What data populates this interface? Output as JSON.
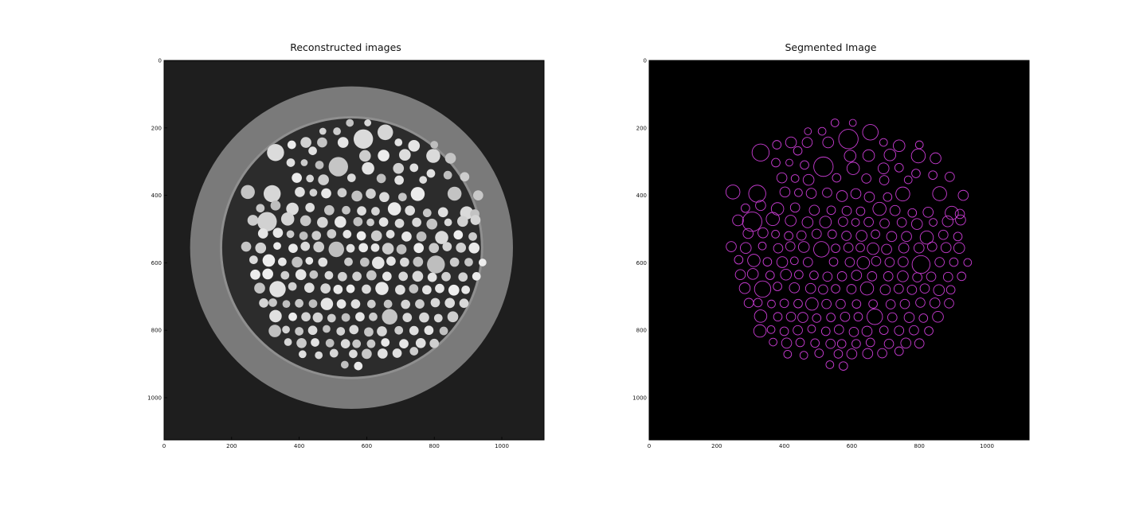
{
  "chart_data": [
    {
      "type": "image",
      "title": "Reconstructed images",
      "xticks": [
        0,
        200,
        400,
        600,
        800,
        1000
      ],
      "yticks": [
        0,
        200,
        400,
        600,
        800,
        1000
      ],
      "xticklabels": [
        "0",
        "200",
        "400",
        "600",
        "800",
        "1000"
      ],
      "yticklabels": [
        "0",
        "200",
        "400",
        "600",
        "800",
        "1000"
      ],
      "xlim": [
        0,
        1125
      ],
      "ylim": [
        1125,
        0
      ],
      "colormap": "gray",
      "background_color": "#1e1e1e",
      "ring_color": "#7a7a7a",
      "interior_color": "#2c2c2c"
    },
    {
      "type": "image",
      "title": "Segmented Image",
      "xticks": [
        0,
        200,
        400,
        600,
        800,
        1000
      ],
      "yticks": [
        0,
        200,
        400,
        600,
        800,
        1000
      ],
      "xticklabels": [
        "0",
        "200",
        "400",
        "600",
        "800",
        "1000"
      ],
      "yticklabels": [
        "0",
        "200",
        "400",
        "600",
        "800",
        "1000"
      ],
      "xlim": [
        0,
        1125
      ],
      "ylim": [
        1125,
        0
      ],
      "background_color": "#000000",
      "contour_color": "#c83cd2"
    }
  ],
  "particles": [
    [
      550,
      185,
      10
    ],
    [
      603,
      185,
      9
    ],
    [
      655,
      213,
      20
    ],
    [
      470,
      210,
      9
    ],
    [
      512,
      210,
      10
    ],
    [
      590,
      233,
      25
    ],
    [
      420,
      243,
      14
    ],
    [
      468,
      243,
      13
    ],
    [
      530,
      243,
      14
    ],
    [
      694,
      243,
      10
    ],
    [
      740,
      253,
      15
    ],
    [
      800,
      250,
      10
    ],
    [
      378,
      250,
      11
    ],
    [
      330,
      273,
      22
    ],
    [
      440,
      268,
      11
    ],
    [
      595,
      283,
      15
    ],
    [
      650,
      282,
      15
    ],
    [
      713,
      280,
      15
    ],
    [
      797,
      283,
      18
    ],
    [
      848,
      290,
      14
    ],
    [
      375,
      303,
      11
    ],
    [
      415,
      303,
      9
    ],
    [
      516,
      315,
      25
    ],
    [
      460,
      310,
      11
    ],
    [
      604,
      320,
      16
    ],
    [
      694,
      320,
      14
    ],
    [
      740,
      318,
      11
    ],
    [
      790,
      335,
      11
    ],
    [
      840,
      340,
      11
    ],
    [
      890,
      345,
      12
    ],
    [
      393,
      348,
      13
    ],
    [
      432,
      350,
      10
    ],
    [
      472,
      354,
      14
    ],
    [
      555,
      348,
      11
    ],
    [
      643,
      350,
      12
    ],
    [
      696,
      355,
      12
    ],
    [
      767,
      354,
      10
    ],
    [
      248,
      390,
      18
    ],
    [
      320,
      395,
      22
    ],
    [
      402,
      390,
      13
    ],
    [
      442,
      392,
      10
    ],
    [
      480,
      394,
      13
    ],
    [
      527,
      392,
      12
    ],
    [
      571,
      402,
      14
    ],
    [
      612,
      395,
      13
    ],
    [
      652,
      405,
      13
    ],
    [
      706,
      405,
      11
    ],
    [
      751,
      396,
      18
    ],
    [
      860,
      395,
      18
    ],
    [
      930,
      400,
      13
    ],
    [
      285,
      438,
      11
    ],
    [
      330,
      430,
      13
    ],
    [
      380,
      440,
      16
    ],
    [
      432,
      436,
      12
    ],
    [
      489,
      444,
      13
    ],
    [
      539,
      444,
      11
    ],
    [
      585,
      446,
      12
    ],
    [
      626,
      447,
      11
    ],
    [
      682,
      440,
      17
    ],
    [
      728,
      445,
      13
    ],
    [
      779,
      452,
      11
    ],
    [
      826,
      450,
      13
    ],
    [
      896,
      452,
      17
    ],
    [
      920,
      455,
      12
    ],
    [
      263,
      474,
      14
    ],
    [
      305,
      478,
      25
    ],
    [
      366,
      470,
      17
    ],
    [
      419,
      475,
      14
    ],
    [
      469,
      480,
      14
    ],
    [
      522,
      479,
      15
    ],
    [
      574,
      478,
      12
    ],
    [
      611,
      480,
      10
    ],
    [
      650,
      479,
      12
    ],
    [
      697,
      483,
      12
    ],
    [
      748,
      480,
      12
    ],
    [
      793,
      485,
      14
    ],
    [
      841,
      480,
      10
    ],
    [
      884,
      477,
      14
    ],
    [
      922,
      473,
      13
    ],
    [
      293,
      513,
      13
    ],
    [
      337,
      511,
      13
    ],
    [
      374,
      515,
      10
    ],
    [
      413,
      520,
      11
    ],
    [
      451,
      519,
      12
    ],
    [
      496,
      514,
      12
    ],
    [
      542,
      515,
      11
    ],
    [
      584,
      520,
      12
    ],
    [
      629,
      520,
      14
    ],
    [
      670,
      515,
      11
    ],
    [
      718,
      522,
      13
    ],
    [
      762,
      522,
      13
    ],
    [
      822,
      525,
      17
    ],
    [
      871,
      517,
      12
    ],
    [
      914,
      522,
      11
    ],
    [
      243,
      552,
      13
    ],
    [
      286,
      556,
      14
    ],
    [
      335,
      550,
      10
    ],
    [
      382,
      557,
      12
    ],
    [
      418,
      551,
      12
    ],
    [
      458,
      553,
      14
    ],
    [
      510,
      560,
      20
    ],
    [
      552,
      557,
      11
    ],
    [
      590,
      555,
      12
    ],
    [
      625,
      555,
      11
    ],
    [
      663,
      558,
      15
    ],
    [
      703,
      560,
      13
    ],
    [
      754,
      556,
      13
    ],
    [
      799,
      556,
      13
    ],
    [
      838,
      552,
      12
    ],
    [
      879,
      555,
      13
    ],
    [
      918,
      556,
      14
    ],
    [
      265,
      591,
      11
    ],
    [
      310,
      593,
      16
    ],
    [
      350,
      597,
      11
    ],
    [
      394,
      598,
      14
    ],
    [
      430,
      594,
      10
    ],
    [
      470,
      598,
      12
    ],
    [
      546,
      597,
      11
    ],
    [
      594,
      598,
      12
    ],
    [
      634,
      600,
      16
    ],
    [
      672,
      595,
      12
    ],
    [
      712,
      598,
      12
    ],
    [
      752,
      597,
      13
    ],
    [
      805,
      605,
      23
    ],
    [
      860,
      598,
      12
    ],
    [
      902,
      598,
      11
    ],
    [
      943,
      599,
      10
    ],
    [
      270,
      635,
      13
    ],
    [
      307,
      633,
      14
    ],
    [
      358,
      637,
      11
    ],
    [
      405,
      635,
      14
    ],
    [
      443,
      635,
      11
    ],
    [
      488,
      637,
      11
    ],
    [
      528,
      641,
      12
    ],
    [
      571,
      640,
      12
    ],
    [
      614,
      637,
      13
    ],
    [
      660,
      640,
      12
    ],
    [
      708,
      640,
      12
    ],
    [
      751,
      640,
      14
    ],
    [
      794,
      643,
      12
    ],
    [
      835,
      641,
      12
    ],
    [
      885,
      642,
      12
    ],
    [
      925,
      640,
      11
    ],
    [
      283,
      675,
      14
    ],
    [
      336,
      678,
      21
    ],
    [
      380,
      670,
      11
    ],
    [
      430,
      674,
      13
    ],
    [
      478,
      676,
      13
    ],
    [
      515,
      679,
      12
    ],
    [
      552,
      677,
      11
    ],
    [
      599,
      678,
      12
    ],
    [
      645,
      676,
      17
    ],
    [
      699,
      680,
      13
    ],
    [
      739,
      677,
      12
    ],
    [
      778,
      680,
      12
    ],
    [
      816,
      676,
      12
    ],
    [
      858,
      681,
      14
    ],
    [
      893,
      680,
      11
    ],
    [
      295,
      719,
      12
    ],
    [
      322,
      718,
      11
    ],
    [
      362,
      722,
      10
    ],
    [
      400,
      720,
      11
    ],
    [
      441,
      721,
      11
    ],
    [
      482,
      722,
      16
    ],
    [
      525,
      722,
      12
    ],
    [
      567,
      722,
      12
    ],
    [
      614,
      722,
      11
    ],
    [
      663,
      722,
      11
    ],
    [
      715,
      723,
      12
    ],
    [
      757,
      722,
      12
    ],
    [
      803,
      718,
      12
    ],
    [
      846,
      719,
      13
    ],
    [
      888,
      720,
      12
    ],
    [
      330,
      758,
      16
    ],
    [
      381,
      760,
      11
    ],
    [
      420,
      760,
      12
    ],
    [
      455,
      762,
      13
    ],
    [
      496,
      764,
      11
    ],
    [
      538,
      762,
      11
    ],
    [
      580,
      760,
      12
    ],
    [
      619,
      760,
      11
    ],
    [
      668,
      760,
      20
    ],
    [
      720,
      762,
      12
    ],
    [
      770,
      762,
      13
    ],
    [
      812,
      764,
      11
    ],
    [
      855,
      760,
      14
    ],
    [
      328,
      802,
      16
    ],
    [
      361,
      798,
      10
    ],
    [
      400,
      803,
      11
    ],
    [
      440,
      800,
      12
    ],
    [
      481,
      796,
      10
    ],
    [
      523,
      803,
      11
    ],
    [
      562,
      798,
      12
    ],
    [
      606,
      805,
      12
    ],
    [
      645,
      803,
      13
    ],
    [
      695,
      800,
      11
    ],
    [
      740,
      801,
      12
    ],
    [
      784,
      800,
      12
    ],
    [
      828,
      802,
      11
    ],
    [
      367,
      835,
      10
    ],
    [
      407,
      838,
      13
    ],
    [
      447,
      836,
      11
    ],
    [
      491,
      838,
      11
    ],
    [
      537,
      840,
      12
    ],
    [
      570,
      840,
      11
    ],
    [
      613,
      840,
      11
    ],
    [
      655,
      836,
      11
    ],
    [
      710,
      840,
      12
    ],
    [
      760,
      838,
      13
    ],
    [
      800,
      839,
      12
    ],
    [
      410,
      871,
      10
    ],
    [
      458,
      874,
      10
    ],
    [
      503,
      868,
      11
    ],
    [
      560,
      870,
      11
    ],
    [
      600,
      870,
      13
    ],
    [
      647,
      869,
      13
    ],
    [
      690,
      868,
      12
    ],
    [
      740,
      862,
      11
    ],
    [
      535,
      902,
      10
    ],
    [
      575,
      906,
      11
    ]
  ]
}
